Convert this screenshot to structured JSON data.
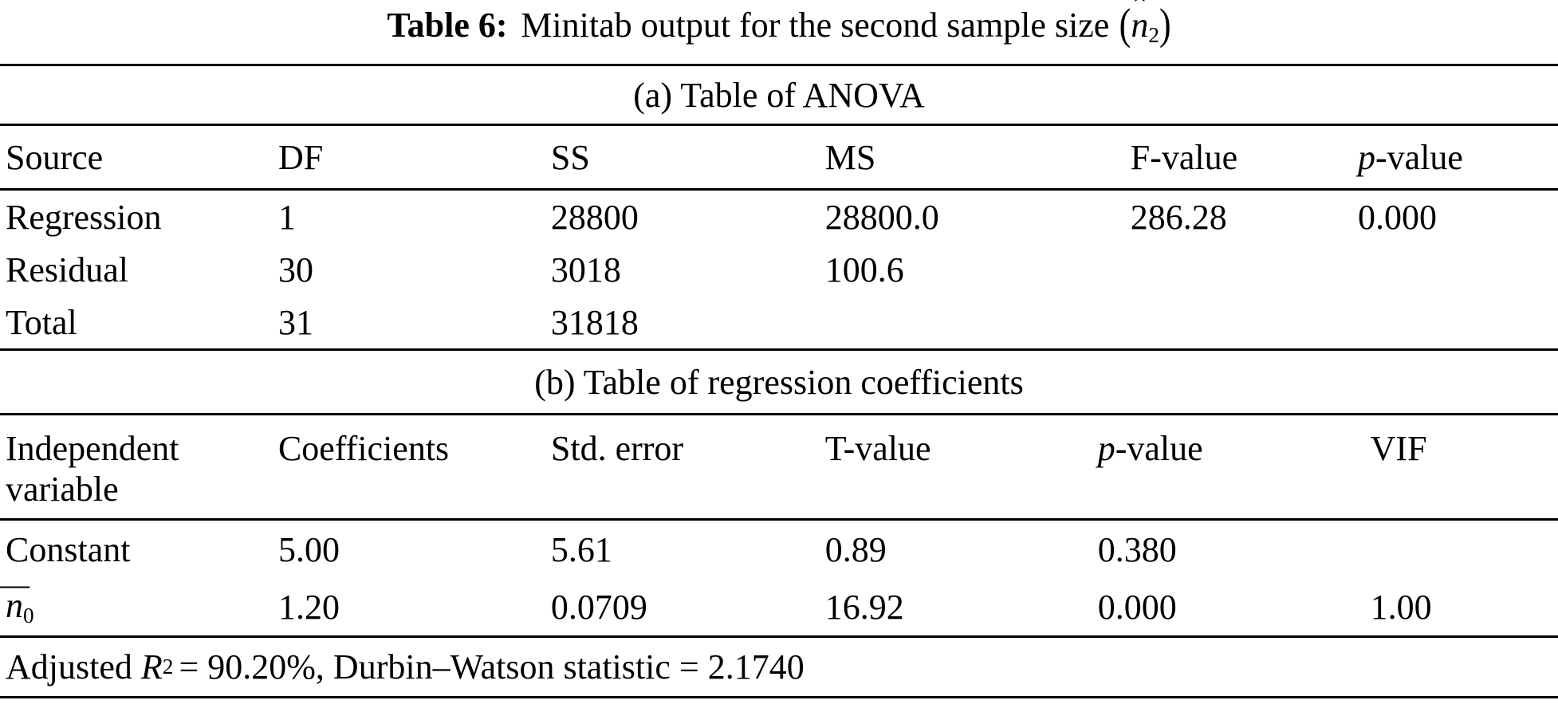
{
  "title": {
    "bold": "Table 6:",
    "text": "Minitab output for the second sample size",
    "math": {
      "open": "(",
      "base": "n",
      "accent": "ˆ",
      "sub": "2",
      "close": ")"
    }
  },
  "anova": {
    "caption": "(a) Table of ANOVA",
    "columns": [
      {
        "t": "Source"
      },
      {
        "t": "DF"
      },
      {
        "t": "SS"
      },
      {
        "t": "MS"
      },
      {
        "t": "F-value"
      },
      {
        "i": "p",
        "t": "-value"
      }
    ],
    "rows": [
      {
        "cells": [
          "Regression",
          "1",
          "28800",
          "28800.0",
          "286.28",
          "0.000"
        ]
      },
      {
        "cells": [
          "Residual",
          "30",
          "3018",
          "100.6",
          "",
          ""
        ]
      },
      {
        "cells": [
          "Total",
          "31",
          "31818",
          "",
          "",
          ""
        ]
      }
    ]
  },
  "regression": {
    "caption": "(b) Table of regression coefficients",
    "columns": [
      {
        "t": "Independent variable"
      },
      {
        "t": "Coefficients"
      },
      {
        "t": "Std. error"
      },
      {
        "t": "T-value"
      },
      {
        "i": "p",
        "t": "-value"
      },
      {
        "t": "VIF"
      }
    ],
    "rows": [
      {
        "label": "Constant",
        "cells": [
          "5.00",
          "5.61",
          "0.89",
          "0.380",
          ""
        ]
      },
      {
        "label_math": {
          "base": "n",
          "accent": "¯",
          "sub": "0"
        },
        "cells": [
          "1.20",
          "0.0709",
          "16.92",
          "0.000",
          "1.00"
        ]
      }
    ]
  },
  "footer": {
    "prefix": "Adjusted",
    "r": "R",
    "r_sup": "2",
    "rest": "= 90.20%, Durbin–Watson statistic = 2.1740"
  }
}
